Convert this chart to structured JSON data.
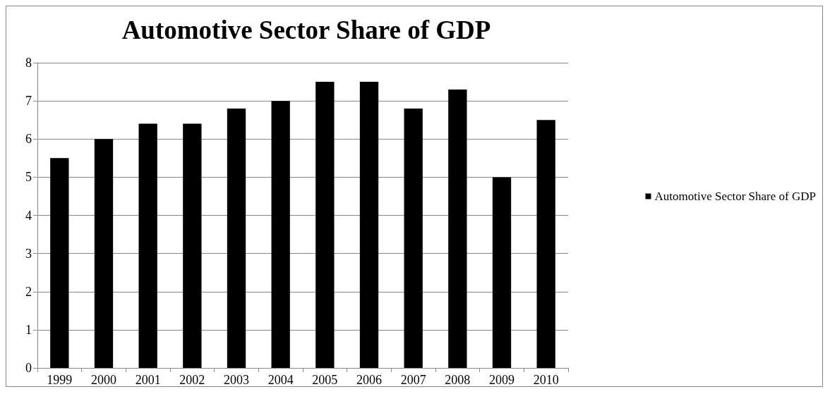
{
  "chart_data": {
    "type": "bar",
    "title": "Automotive Sector Share of GDP",
    "categories": [
      "1999",
      "2000",
      "2001",
      "2002",
      "2003",
      "2004",
      "2005",
      "2006",
      "2007",
      "2008",
      "2009",
      "2010"
    ],
    "series": [
      {
        "name": "Automotive Sector Share of GDP",
        "color": "#000000",
        "values": [
          5.5,
          6,
          6.4,
          6.4,
          6.8,
          7,
          7.5,
          7.5,
          6.8,
          7.3,
          5,
          6.5
        ]
      }
    ],
    "ylim": [
      0,
      8
    ],
    "yticks": [
      0,
      1,
      2,
      3,
      4,
      5,
      6,
      7,
      8
    ],
    "grid": "y",
    "legend": "right"
  }
}
